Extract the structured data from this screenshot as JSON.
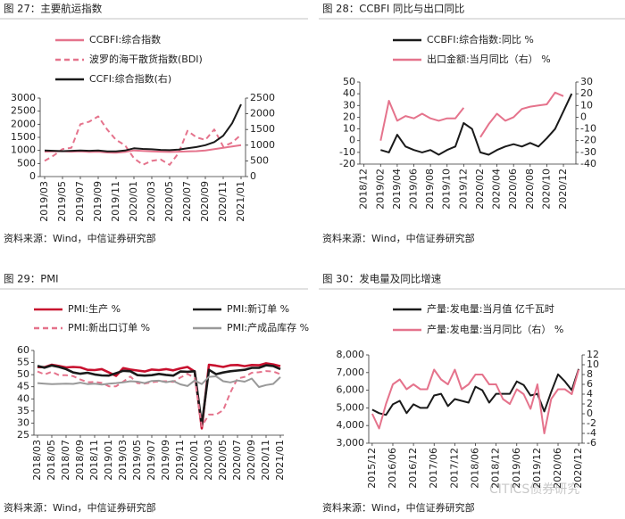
{
  "chart_data": [
    {
      "type": "line",
      "title": "图 27：主要航运指数",
      "source": "资料来源：Wind，中信证券研究部",
      "categories": [
        "2019/03",
        null,
        "2019/05",
        null,
        "2019/07",
        null,
        "2019/09",
        null,
        "2019/11",
        null,
        "2020/01",
        null,
        "2020/03",
        null,
        "2020/05",
        null,
        "2020/07",
        null,
        "2020/09",
        null,
        "2020/11",
        null,
        "2021/01"
      ],
      "ylim": [
        0,
        3000
      ],
      "yticks": [
        0,
        500,
        1000,
        1500,
        2000,
        2500,
        3000
      ],
      "y2lim": [
        0,
        2500
      ],
      "y2ticks": [
        0,
        500,
        1000,
        1500,
        2000,
        2500
      ],
      "series": [
        {
          "name": "CCBFI:综合指数",
          "color": "#e5738c",
          "values": [
            950,
            960,
            970,
            950,
            960,
            940,
            950,
            920,
            910,
            940,
            1000,
            980,
            960,
            950,
            940,
            950,
            960,
            970,
            1000,
            1050,
            1100,
            1150,
            1200
          ]
        },
        {
          "name": "波罗的海干散货指数(BDI)",
          "color": "#e5738c",
          "dashed": true,
          "values": [
            600,
            800,
            1050,
            1100,
            2000,
            2100,
            2300,
            1800,
            1400,
            1200,
            700,
            450,
            600,
            650,
            450,
            900,
            1750,
            1500,
            1400,
            1800,
            1150,
            1300,
            1600
          ]
        },
        {
          "name": "CCFI:综合指数(右)",
          "color": "#1a1a1a",
          "axis": "y2",
          "values": [
            830,
            820,
            810,
            820,
            830,
            820,
            830,
            800,
            800,
            830,
            900,
            880,
            870,
            850,
            840,
            860,
            900,
            940,
            1000,
            1100,
            1300,
            1700,
            2300
          ]
        }
      ]
    },
    {
      "type": "line",
      "title": "图 28：CCBFI 同比与出口同比",
      "source": "资料来源：Wind，中信证券研究部",
      "categories": [
        "2018/12",
        null,
        "2019/02",
        null,
        "2019/04",
        null,
        "2019/06",
        null,
        "2019/08",
        null,
        "2019/10",
        null,
        "2019/12",
        null,
        "2020/02",
        null,
        "2020/04",
        null,
        "2020/06",
        null,
        "2020/08",
        null,
        "2020/10",
        null,
        "2020/12",
        null
      ],
      "ylim": [
        -20,
        50
      ],
      "yticks": [
        -20,
        -10,
        0,
        10,
        20,
        30,
        40,
        50
      ],
      "y2lim": [
        -40,
        30
      ],
      "y2ticks": [
        -40,
        -30,
        -20,
        -10,
        0,
        10,
        20,
        30
      ],
      "series": [
        {
          "name": "CCBFI:综合指数:同比 %",
          "color": "#1a1a1a",
          "values": [
            null,
            null,
            -8,
            -10,
            5,
            -5,
            -8,
            -10,
            -8,
            -12,
            -8,
            -5,
            15,
            10,
            -10,
            -12,
            -8,
            -5,
            -3,
            -5,
            -2,
            -5,
            2,
            10,
            25,
            40
          ]
        },
        {
          "name": "出口金额:当月同比（右） %",
          "color": "#e5738c",
          "axis": "y2",
          "values": [
            null,
            null,
            -20,
            14,
            -3,
            1,
            -1,
            3,
            -1,
            -3,
            -1,
            -1,
            8,
            null,
            -17,
            -6,
            3,
            -3,
            0,
            7,
            9,
            10,
            11,
            21,
            18,
            null
          ]
        }
      ]
    },
    {
      "type": "line",
      "title": "图 29：PMI",
      "source": "资料来源：Wind，中信证券研究部",
      "categories": [
        "2018/03",
        null,
        "2018/05",
        null,
        "2018/07",
        null,
        "2018/09",
        null,
        "2018/11",
        null,
        "2019/01",
        null,
        "2019/03",
        null,
        "2019/05",
        null,
        "2019/07",
        null,
        "2019/09",
        null,
        "2019/11",
        null,
        "2020/01",
        null,
        "2020/03",
        null,
        "2020/05",
        null,
        "2020/07",
        null,
        "2020/09",
        null,
        "2020/11",
        null,
        "2021/01"
      ],
      "ylim": [
        25,
        60
      ],
      "yticks": [
        25,
        30,
        35,
        40,
        45,
        50,
        55,
        60
      ],
      "series": [
        {
          "name": "PMI:生产 %",
          "color": "#c8102e",
          "values": [
            53.1,
            53.1,
            54.1,
            53.6,
            53,
            53.2,
            53,
            52,
            51.9,
            52.3,
            50.9,
            49.5,
            52.7,
            52.1,
            51.7,
            51.3,
            52.1,
            51.9,
            52.3,
            51.8,
            52.6,
            53.2,
            51.3,
            27.8,
            54.1,
            53.7,
            53.2,
            53.9,
            54,
            53.5,
            54,
            53.9,
            54.7,
            54.2,
            53.5
          ]
        },
        {
          "name": "PMI:新订单 %",
          "color": "#1a1a1a",
          "values": [
            53.6,
            52.9,
            53.8,
            53.2,
            52.3,
            50.9,
            50.4,
            50.8,
            50.1,
            49.7,
            49.6,
            50.6,
            51.6,
            51.4,
            49.8,
            49.6,
            49.8,
            50.3,
            49.9,
            49.6,
            51.3,
            51.2,
            51.4,
            29.3,
            52,
            50.2,
            50.9,
            51.4,
            51.7,
            52,
            52.8,
            52.8,
            53.9,
            53.6,
            52.3
          ]
        },
        {
          "name": "PMI:新出口订单 %",
          "color": "#e5738c",
          "dashed": true,
          "values": [
            51.3,
            50.1,
            51.2,
            49.8,
            49.8,
            49.4,
            48,
            46.9,
            47,
            46.6,
            45.2,
            45.2,
            47.1,
            49.2,
            46.5,
            46.3,
            46.9,
            47.2,
            47.3,
            47,
            48.8,
            50.3,
            48.7,
            28.7,
            33.5,
            33.5,
            35.3,
            42.6,
            48.4,
            49.1,
            50.8,
            51,
            51.5,
            51.3,
            50.2
          ]
        },
        {
          "name": "PMI:产成品库存 %",
          "color": "#999999",
          "values": [
            46.5,
            46.3,
            46.1,
            46.2,
            46.3,
            46.2,
            46.7,
            46.1,
            46.3,
            45.9,
            46.3,
            46.5,
            46.8,
            47.3,
            47.1,
            46.5,
            47.4,
            47.5,
            46.9,
            47.4,
            46,
            45.3,
            47.6,
            46.1,
            49.1,
            49.3,
            47.3,
            46.8,
            47.6,
            47.1,
            48.4,
            44.9,
            45.7,
            46.2,
            49
          ]
        }
      ]
    },
    {
      "type": "line",
      "title": "图 30：发电量及同比增速",
      "source": "资料来源：Wind，中信证券研究部",
      "categories": [
        "2015/12",
        null,
        null,
        "2016/06",
        null,
        null,
        "2016/12",
        null,
        null,
        "2017/06",
        null,
        null,
        "2017/12",
        null,
        null,
        "2018/06",
        null,
        null,
        "2018/12",
        null,
        null,
        "2019/06",
        null,
        null,
        "2019/12",
        null,
        null,
        "2020/06",
        null,
        null,
        "2020/12"
      ],
      "ylim": [
        3000,
        8000
      ],
      "yticks": [
        {
          "value": 3000,
          "label": "3,000"
        },
        {
          "value": 4000,
          "label": "4,000"
        },
        {
          "value": 5000,
          "label": "5,000"
        },
        {
          "value": 6000,
          "label": "6,000"
        },
        {
          "value": 7000,
          "label": "7,000"
        },
        {
          "value": 8000,
          "label": "8,000"
        }
      ],
      "y2lim": [
        -6,
        12
      ],
      "y2ticks": [
        -6,
        -4,
        -2,
        0,
        2,
        4,
        6,
        8,
        10,
        12
      ],
      "series": [
        {
          "name": "产量:发电量:当月值 亿千瓦时",
          "color": "#1a1a1a",
          "values": [
            4900,
            4700,
            4600,
            5200,
            5400,
            4700,
            5200,
            5000,
            5000,
            5700,
            5800,
            5100,
            5500,
            5400,
            5300,
            6200,
            6000,
            5300,
            5800,
            5800,
            5800,
            6500,
            6300,
            5700,
            5800,
            4800,
            5900,
            6900,
            6500,
            6000,
            7200
          ]
        },
        {
          "name": "产量:发电量:当月同比（右） %",
          "color": "#e5738c",
          "axis": "y2",
          "values": [
            0,
            -3,
            2,
            6,
            7,
            5,
            6,
            5,
            5,
            9,
            7,
            6,
            9,
            5,
            6,
            8,
            8,
            6,
            6,
            3,
            2,
            5,
            4,
            1,
            6,
            -4,
            3,
            5,
            5,
            4,
            9
          ]
        }
      ]
    }
  ],
  "watermark": "CITICS债券研究"
}
